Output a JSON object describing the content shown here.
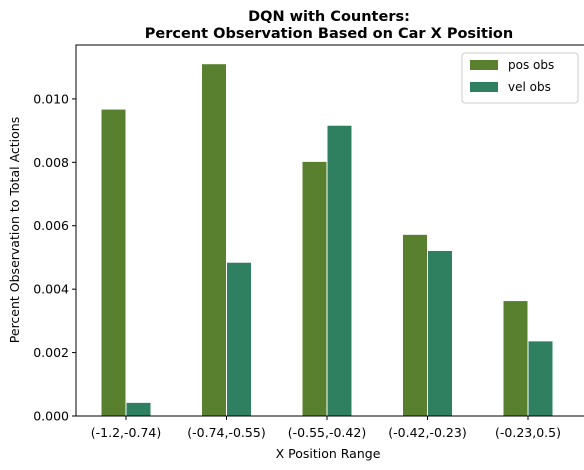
{
  "chart_data": {
    "type": "bar",
    "title_line1": "DQN with Counters:",
    "title_line2": "Percent Observation Based on Car X Position",
    "xlabel": "X Position Range",
    "ylabel": "Percent Observation to Total Actions",
    "categories": [
      "(-1.2,-0.74)",
      "(-0.74,-0.55)",
      "(-0.55,-0.42)",
      "(-0.42,-0.23)",
      "(-0.23,0.5)"
    ],
    "series": [
      {
        "name": "pos obs",
        "color": "#58802e",
        "values": [
          0.00968,
          0.01111,
          0.00803,
          0.00573,
          0.00364
        ]
      },
      {
        "name": "vel obs",
        "color": "#2e8060",
        "values": [
          0.00043,
          0.00485,
          0.00917,
          0.00522,
          0.00237
        ]
      }
    ],
    "ylim": [
      0,
      0.0117
    ],
    "yticks": [
      0.0,
      0.002,
      0.004,
      0.006,
      0.008,
      0.01
    ],
    "ytick_labels": [
      "0.000",
      "0.002",
      "0.004",
      "0.006",
      "0.008",
      "0.010"
    ],
    "legend_position": "top-right",
    "grid": false
  }
}
